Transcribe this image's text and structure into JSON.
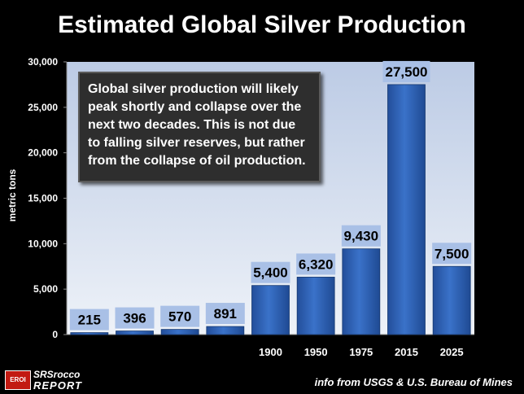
{
  "title": "Estimated Global Silver Production",
  "annotation": "Global silver production will likely peak shortly and collapse over the next two decades.  This is not due to falling silver reserves, but rather from the collapse of oil production.",
  "source": "info from USGS & U.S. Bureau of Mines",
  "logo": {
    "emblem_text": "EROI",
    "line1": "SRSrocco",
    "line2": "REPORT"
  },
  "colors": {
    "bar": "#2f63b8",
    "label_box": "#a9c0e6",
    "plot_bg": "#dbe3f1"
  },
  "chart_data": {
    "type": "bar",
    "title": "Estimated Global Silver Production",
    "ylabel": "metric tons",
    "xlabel": "",
    "categories": [
      "",
      "",
      "",
      "",
      "1900",
      "1950",
      "1975",
      "2015",
      "2025"
    ],
    "values": [
      215,
      396,
      570,
      891,
      5400,
      6320,
      9430,
      27500,
      7500
    ],
    "value_labels": [
      "215",
      "396",
      "570",
      "891",
      "5,400",
      "6,320",
      "9,430",
      "27,500",
      "7,500"
    ],
    "ylim": [
      0,
      30000
    ],
    "yticks": [
      0,
      5000,
      10000,
      15000,
      20000,
      25000,
      30000
    ],
    "ytick_labels": [
      "0",
      "5,000",
      "10,000",
      "15,000",
      "20,000",
      "25,000",
      "30,000"
    ],
    "grid": false,
    "legend": "none"
  }
}
